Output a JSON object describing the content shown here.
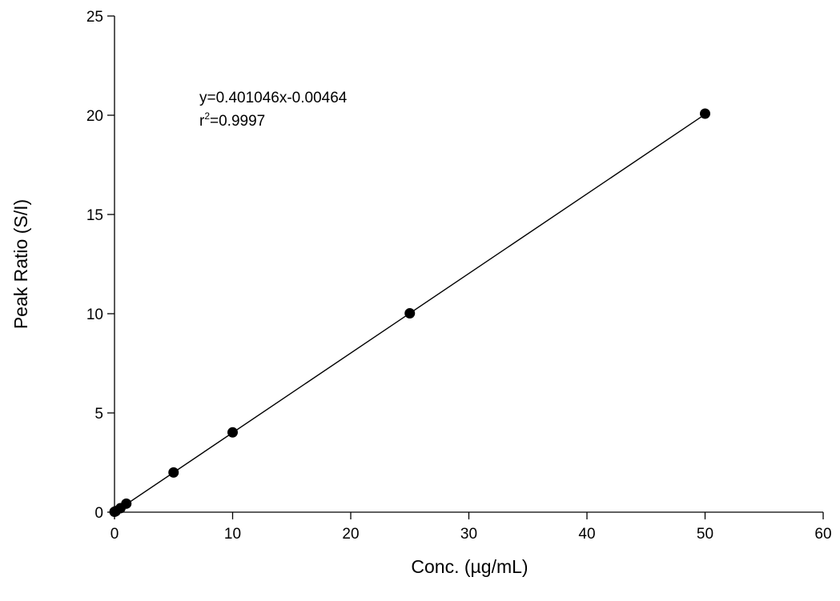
{
  "chart_data": {
    "type": "scatter",
    "xlabel": "Conc. (µg/mL)",
    "ylabel": "Peak Ratio (S/I)",
    "xlim": [
      0,
      60
    ],
    "ylim": [
      0,
      25
    ],
    "x_ticks": [
      0,
      10,
      20,
      30,
      40,
      50,
      60
    ],
    "y_ticks": [
      0,
      5,
      10,
      15,
      20,
      25
    ],
    "grid": false,
    "series": [
      {
        "x": [
          0,
          0.1,
          0.5,
          1,
          5,
          10,
          25,
          50
        ],
        "y": [
          0.02,
          0.05,
          0.2,
          0.43,
          2.0,
          4.02,
          10.02,
          20.08
        ],
        "marker": "filled-circle",
        "color": "#000000"
      }
    ],
    "fit_line": {
      "slope": 0.401046,
      "intercept": -0.00464,
      "x_range": [
        0,
        50
      ],
      "color": "#000000"
    },
    "annotations": {
      "equation": "y=0.401046x-0.00464",
      "r_squared_prefix": "r",
      "r_squared_exponent": "2",
      "r_squared_value": "=0.9997"
    }
  }
}
